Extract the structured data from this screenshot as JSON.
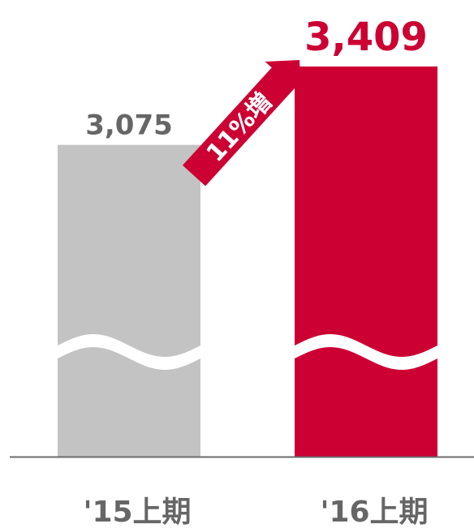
{
  "chart_data": {
    "type": "bar",
    "categories": [
      "'15上期",
      "'16上期"
    ],
    "values": [
      3075,
      3409
    ],
    "value_labels": [
      "3,075",
      "3,409"
    ],
    "axis_break": true,
    "annotations": [
      {
        "text": "11%増",
        "from": "'15上期",
        "to": "'16上期"
      }
    ],
    "colors": {
      "bar_prev": "#c3c3c3",
      "bar_curr": "#cc0033",
      "prev_label": "#666666",
      "curr_label": "#cc0033",
      "axis": "#6b6b6b"
    }
  }
}
